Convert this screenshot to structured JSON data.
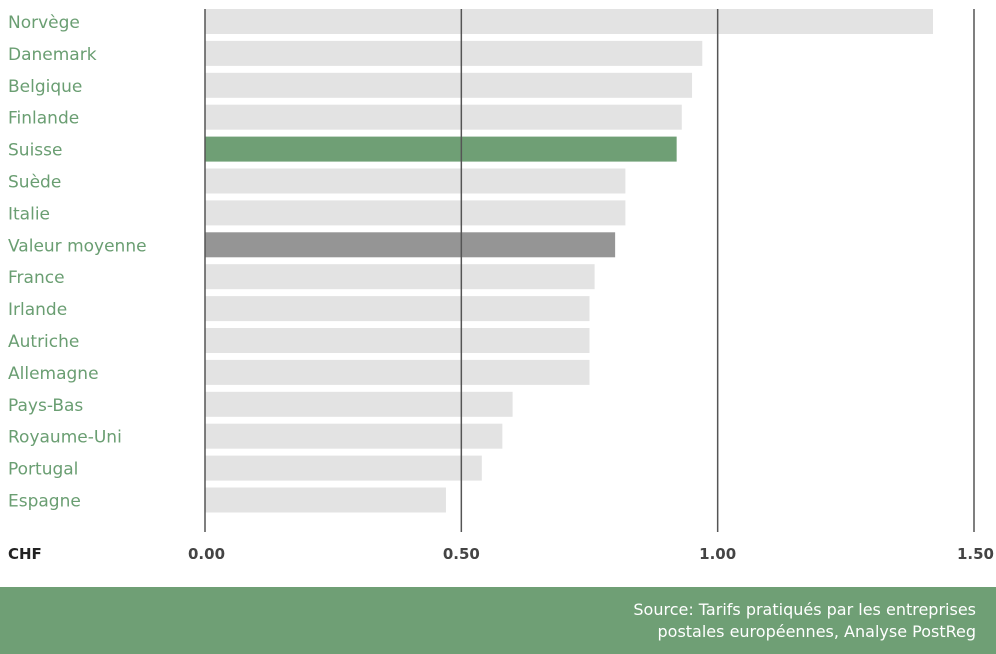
{
  "chart_data": {
    "type": "bar",
    "orientation": "horizontal",
    "categories": [
      "Norvège",
      "Danemark",
      "Belgique",
      "Finlande",
      "Suisse",
      "Suède",
      "Italie",
      "Valeur moyenne",
      "France",
      "Irlande",
      "Autriche",
      "Allemagne",
      "Pays-Bas",
      "Royaume-Uni",
      "Portugal",
      "Espagne"
    ],
    "values": [
      1.42,
      0.97,
      0.95,
      0.93,
      0.92,
      0.82,
      0.82,
      0.8,
      0.76,
      0.75,
      0.75,
      0.75,
      0.6,
      0.58,
      0.54,
      0.47
    ],
    "highlight": {
      "Suisse": "#6f9f75",
      "Valeur moyenne": "#959595"
    },
    "bar_color": "#e3e3e3",
    "xlabel": "CHF",
    "xlim": [
      0,
      1.5
    ],
    "xticks": [
      "0.00",
      "0.50",
      "1.00",
      "1.50"
    ],
    "xtick_values": [
      0,
      0.5,
      1.0,
      1.5
    ],
    "grid": true
  },
  "source": {
    "line1": "Source: Tarifs pratiqués par les entreprises",
    "line2": "postales européennes, Analyse PostReg"
  },
  "colors": {
    "label": "#6a9e72",
    "footer_bg": "#6f9f75",
    "gridline": "#555555"
  }
}
